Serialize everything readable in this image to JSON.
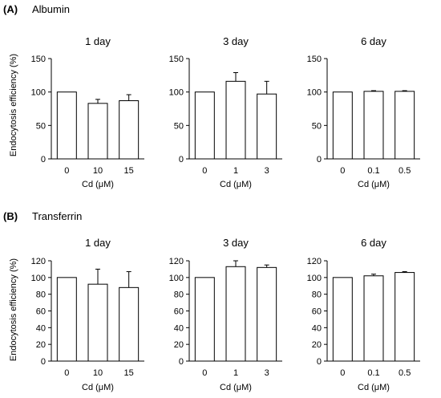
{
  "panels": [
    {
      "letter": "(A)",
      "name": "Albumin",
      "ylabel": "Endocytosis efficiency (%)",
      "charts": [
        {
          "type": "bar",
          "title": "1 day",
          "categories": [
            "0",
            "10",
            "15"
          ],
          "values": [
            100,
            83,
            87
          ],
          "errors": [
            0,
            6,
            9
          ],
          "ylim": [
            0,
            150
          ],
          "yticks": [
            "0",
            "50",
            "100",
            "150"
          ],
          "xlabel": "Cd (μM)"
        },
        {
          "type": "bar",
          "title": "3 day",
          "categories": [
            "0",
            "1",
            "3"
          ],
          "values": [
            100,
            116,
            97
          ],
          "errors": [
            0,
            13,
            19
          ],
          "ylim": [
            0,
            150
          ],
          "yticks": [
            "0",
            "50",
            "100",
            "150"
          ],
          "xlabel": "Cd (μM)"
        },
        {
          "type": "bar",
          "title": "6 day",
          "categories": [
            "0",
            "0.1",
            "0.5"
          ],
          "values": [
            100,
            101,
            101
          ],
          "errors": [
            0,
            1,
            1
          ],
          "ylim": [
            0,
            150
          ],
          "yticks": [
            "0",
            "50",
            "100",
            "150"
          ],
          "xlabel": "Cd (μM)"
        }
      ]
    },
    {
      "letter": "(B)",
      "name": "Transferrin",
      "ylabel": "Endocytosis efficiency (%)",
      "charts": [
        {
          "type": "bar",
          "title": "1 day",
          "categories": [
            "0",
            "10",
            "15"
          ],
          "values": [
            100,
            92,
            88
          ],
          "errors": [
            0,
            18,
            19
          ],
          "ylim": [
            0,
            120
          ],
          "yticks": [
            "0",
            "20",
            "40",
            "60",
            "80",
            "100",
            "120"
          ],
          "xlabel": "Cd (μM)"
        },
        {
          "type": "bar",
          "title": "3 day",
          "categories": [
            "0",
            "1",
            "3"
          ],
          "values": [
            100,
            113,
            112
          ],
          "errors": [
            0,
            7,
            3
          ],
          "ylim": [
            0,
            120
          ],
          "yticks": [
            "0",
            "20",
            "40",
            "60",
            "80",
            "100",
            "120"
          ],
          "xlabel": "Cd (μM)"
        },
        {
          "type": "bar",
          "title": "6 day",
          "categories": [
            "0",
            "0.1",
            "0.5"
          ],
          "values": [
            100,
            102,
            106
          ],
          "errors": [
            0,
            2,
            1
          ],
          "ylim": [
            0,
            120
          ],
          "yticks": [
            "0",
            "20",
            "40",
            "60",
            "80",
            "100",
            "120"
          ],
          "xlabel": "Cd (μM)"
        }
      ]
    }
  ],
  "chart_data": [
    {
      "type": "bar",
      "title": "1 day",
      "categories": [
        "0",
        "10",
        "15"
      ],
      "values": [
        100,
        83,
        87
      ],
      "ylim": [
        0,
        150
      ],
      "xlabel": "Cd (μM)",
      "ylabel": "Endocytosis efficiency (%)"
    },
    {
      "type": "bar",
      "title": "3 day",
      "categories": [
        "0",
        "1",
        "3"
      ],
      "values": [
        100,
        116,
        97
      ],
      "ylim": [
        0,
        150
      ],
      "xlabel": "Cd (μM)",
      "ylabel": ""
    },
    {
      "type": "bar",
      "title": "6 day",
      "categories": [
        "0",
        "0.1",
        "0.5"
      ],
      "values": [
        100,
        101,
        101
      ],
      "ylim": [
        0,
        150
      ],
      "xlabel": "Cd (μM)",
      "ylabel": ""
    },
    {
      "type": "bar",
      "title": "1 day",
      "categories": [
        "0",
        "10",
        "15"
      ],
      "values": [
        100,
        92,
        88
      ],
      "ylim": [
        0,
        120
      ],
      "xlabel": "Cd (μM)",
      "ylabel": "Endocytosis efficiency (%)"
    },
    {
      "type": "bar",
      "title": "3 day",
      "categories": [
        "0",
        "1",
        "3"
      ],
      "values": [
        100,
        113,
        112
      ],
      "ylim": [
        0,
        120
      ],
      "xlabel": "Cd (μM)",
      "ylabel": ""
    },
    {
      "type": "bar",
      "title": "6 day",
      "categories": [
        "0",
        "0.1",
        "0.5"
      ],
      "values": [
        100,
        102,
        106
      ],
      "ylim": [
        0,
        120
      ],
      "xlabel": "Cd (μM)",
      "ylabel": ""
    }
  ]
}
